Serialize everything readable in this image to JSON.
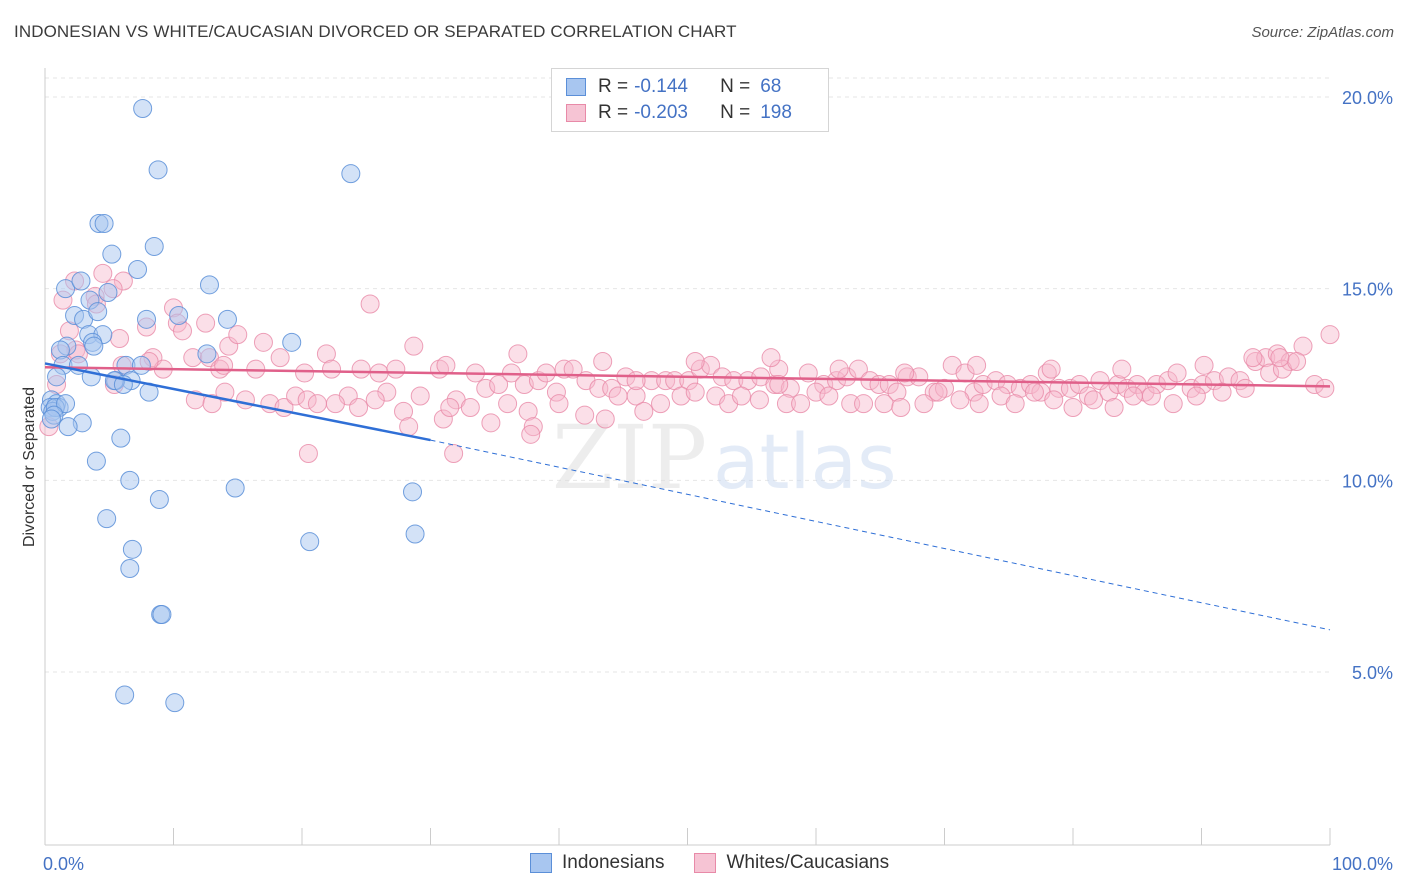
{
  "header": {
    "title": "INDONESIAN VS WHITE/CAUCASIAN DIVORCED OR SEPARATED CORRELATION CHART",
    "source": "Source: ZipAtlas.com"
  },
  "watermark": {
    "zip": "ZIP",
    "atlas": "atlas"
  },
  "legend": {
    "r_label": "R =",
    "n_label": "N =",
    "rows": [
      {
        "r": "-0.144",
        "n": "68"
      },
      {
        "r": "-0.203",
        "n": "198"
      }
    ]
  },
  "bottom_legend": [
    "Indonesians",
    "Whites/Caucasians"
  ],
  "chart_data": {
    "type": "scatter",
    "title": "INDONESIAN VS WHITE/CAUCASIAN DIVORCED OR SEPARATED CORRELATION CHART",
    "ylabel": "Divorced or Separated",
    "xlabel": "",
    "xlim": [
      0,
      100
    ],
    "ylim": [
      0,
      21
    ],
    "x_tick_labels": [
      "0.0%",
      "100.0%"
    ],
    "y_ticks": [
      5,
      10,
      15,
      20
    ],
    "y_tick_labels": [
      "5.0%",
      "10.0%",
      "15.0%",
      "20.0%"
    ],
    "grid": true,
    "legend_position": "top-center",
    "colors": {
      "indonesians_fill": "#a8c6f0",
      "indonesians_stroke": "#5b8fd8",
      "indonesians_line": "#2f6fd6",
      "whites_fill": "#f6b8cc",
      "whites_stroke": "#e88aa8",
      "whites_line": "#e0608a",
      "tick_text": "#4472c4"
    },
    "series": [
      {
        "name": "Indonesians",
        "r": -0.144,
        "n": 68,
        "trend": {
          "x0": 0,
          "y0": 13.05,
          "x1": 30,
          "y1": 11.05,
          "dash_to_x": 100,
          "dash_to_y": 6.1
        },
        "points": [
          [
            7.6,
            19.7
          ],
          [
            8.8,
            18.1
          ],
          [
            23.8,
            18.0
          ],
          [
            4.2,
            16.7
          ],
          [
            4.6,
            16.7
          ],
          [
            8.5,
            16.1
          ],
          [
            5.2,
            15.9
          ],
          [
            7.2,
            15.5
          ],
          [
            1.6,
            15.0
          ],
          [
            2.8,
            15.2
          ],
          [
            12.8,
            15.1
          ],
          [
            3.5,
            14.7
          ],
          [
            4.9,
            14.9
          ],
          [
            2.3,
            14.3
          ],
          [
            3.0,
            14.2
          ],
          [
            4.1,
            14.4
          ],
          [
            7.9,
            14.2
          ],
          [
            10.4,
            14.3
          ],
          [
            14.2,
            14.2
          ],
          [
            3.4,
            13.8
          ],
          [
            4.5,
            13.8
          ],
          [
            1.7,
            13.5
          ],
          [
            3.7,
            13.6
          ],
          [
            1.2,
            13.4
          ],
          [
            3.8,
            13.5
          ],
          [
            12.6,
            13.3
          ],
          [
            19.2,
            13.6
          ],
          [
            1.4,
            13.0
          ],
          [
            2.6,
            13.0
          ],
          [
            6.3,
            13.0
          ],
          [
            7.5,
            13.0
          ],
          [
            0.9,
            12.7
          ],
          [
            3.6,
            12.7
          ],
          [
            6.7,
            12.6
          ],
          [
            5.5,
            12.6
          ],
          [
            5.4,
            12.6
          ],
          [
            6.1,
            12.5
          ],
          [
            8.1,
            12.3
          ],
          [
            0.5,
            12.1
          ],
          [
            0.9,
            12.0
          ],
          [
            1.1,
            11.9
          ],
          [
            0.4,
            11.9
          ],
          [
            0.6,
            11.8
          ],
          [
            0.8,
            11.9
          ],
          [
            1.6,
            12.0
          ],
          [
            0.7,
            11.7
          ],
          [
            0.5,
            11.6
          ],
          [
            2.9,
            11.5
          ],
          [
            1.8,
            11.4
          ],
          [
            5.9,
            11.1
          ],
          [
            4.0,
            10.5
          ],
          [
            6.6,
            10.0
          ],
          [
            14.8,
            9.8
          ],
          [
            8.9,
            9.5
          ],
          [
            28.6,
            9.7
          ],
          [
            4.8,
            9.0
          ],
          [
            6.8,
            8.2
          ],
          [
            20.6,
            8.4
          ],
          [
            28.8,
            8.6
          ],
          [
            6.6,
            7.7
          ],
          [
            9.0,
            6.5
          ],
          [
            9.1,
            6.5
          ],
          [
            6.2,
            4.4
          ],
          [
            10.1,
            4.2
          ]
        ]
      },
      {
        "name": "Whites/Caucasians",
        "r": -0.203,
        "n": 198,
        "trend": {
          "x0": 0,
          "y0": 12.95,
          "x1": 100,
          "y1": 12.45
        },
        "points": [
          [
            2.3,
            15.2
          ],
          [
            4.5,
            15.4
          ],
          [
            1.4,
            14.7
          ],
          [
            3.9,
            14.8
          ],
          [
            4.0,
            14.6
          ],
          [
            6.1,
            15.2
          ],
          [
            5.3,
            15.0
          ],
          [
            25.3,
            14.6
          ],
          [
            10.0,
            14.5
          ],
          [
            10.3,
            14.1
          ],
          [
            12.5,
            14.1
          ],
          [
            10.7,
            13.9
          ],
          [
            7.9,
            14.0
          ],
          [
            1.9,
            13.9
          ],
          [
            2.4,
            13.4
          ],
          [
            1.2,
            13.3
          ],
          [
            2.6,
            13.3
          ],
          [
            5.8,
            13.7
          ],
          [
            8.4,
            13.2
          ],
          [
            11.5,
            13.2
          ],
          [
            12.8,
            13.2
          ],
          [
            14.3,
            13.5
          ],
          [
            15.0,
            13.8
          ],
          [
            17.0,
            13.6
          ],
          [
            18.3,
            13.2
          ],
          [
            21.9,
            13.3
          ],
          [
            28.7,
            13.5
          ],
          [
            9.2,
            12.9
          ],
          [
            13.6,
            12.9
          ],
          [
            16.4,
            12.9
          ],
          [
            20.2,
            12.8
          ],
          [
            22.3,
            12.9
          ],
          [
            26.0,
            12.8
          ],
          [
            26.6,
            12.3
          ],
          [
            27.3,
            12.9
          ],
          [
            30.7,
            12.9
          ],
          [
            31.2,
            13.0
          ],
          [
            33.5,
            12.8
          ],
          [
            34.3,
            12.4
          ],
          [
            35.3,
            12.5
          ],
          [
            36.3,
            12.8
          ],
          [
            37.3,
            12.5
          ],
          [
            38.4,
            12.6
          ],
          [
            39.0,
            12.8
          ],
          [
            39.8,
            12.3
          ],
          [
            40.4,
            12.9
          ],
          [
            41.1,
            12.9
          ],
          [
            42.1,
            12.6
          ],
          [
            43.1,
            12.4
          ],
          [
            44.1,
            12.4
          ],
          [
            45.2,
            12.7
          ],
          [
            46.0,
            12.2
          ],
          [
            47.2,
            12.6
          ],
          [
            48.3,
            12.6
          ],
          [
            49.0,
            12.6
          ],
          [
            50.1,
            12.6
          ],
          [
            51.0,
            12.9
          ],
          [
            51.8,
            13.0
          ],
          [
            52.7,
            12.7
          ],
          [
            53.6,
            12.6
          ],
          [
            54.7,
            12.6
          ],
          [
            55.7,
            12.7
          ],
          [
            56.8,
            12.5
          ],
          [
            57.1,
            12.9
          ],
          [
            58.0,
            12.4
          ],
          [
            59.4,
            12.8
          ],
          [
            60.6,
            12.5
          ],
          [
            61.6,
            12.6
          ],
          [
            62.4,
            12.7
          ],
          [
            63.3,
            12.9
          ],
          [
            64.2,
            12.6
          ],
          [
            64.9,
            12.5
          ],
          [
            65.7,
            12.5
          ],
          [
            66.3,
            12.3
          ],
          [
            67.1,
            12.7
          ],
          [
            68.0,
            12.7
          ],
          [
            69.2,
            12.3
          ],
          [
            70.0,
            12.4
          ],
          [
            70.6,
            13.0
          ],
          [
            71.6,
            12.8
          ],
          [
            72.3,
            12.3
          ],
          [
            73.0,
            12.5
          ],
          [
            74.0,
            12.6
          ],
          [
            74.9,
            12.5
          ],
          [
            75.9,
            12.4
          ],
          [
            76.7,
            12.5
          ],
          [
            77.5,
            12.3
          ],
          [
            78.0,
            12.8
          ],
          [
            78.9,
            12.4
          ],
          [
            79.8,
            12.4
          ],
          [
            80.5,
            12.5
          ],
          [
            81.2,
            12.2
          ],
          [
            82.1,
            12.6
          ],
          [
            82.8,
            12.3
          ],
          [
            83.5,
            12.5
          ],
          [
            84.2,
            12.4
          ],
          [
            85.0,
            12.5
          ],
          [
            85.6,
            12.3
          ],
          [
            86.5,
            12.5
          ],
          [
            87.4,
            12.6
          ],
          [
            88.1,
            12.8
          ],
          [
            89.2,
            12.4
          ],
          [
            90.1,
            12.5
          ],
          [
            91.0,
            12.6
          ],
          [
            92.1,
            12.7
          ],
          [
            93.0,
            12.6
          ],
          [
            94.2,
            13.1
          ],
          [
            95.0,
            13.2
          ],
          [
            95.9,
            13.3
          ],
          [
            96.9,
            13.1
          ],
          [
            97.9,
            13.5
          ],
          [
            98.8,
            12.5
          ],
          [
            99.6,
            12.4
          ],
          [
            100.0,
            13.8
          ],
          [
            5.4,
            12.5
          ],
          [
            8.1,
            13.1
          ],
          [
            11.7,
            12.1
          ],
          [
            13.0,
            12.0
          ],
          [
            14.0,
            12.3
          ],
          [
            15.6,
            12.1
          ],
          [
            17.5,
            12.0
          ],
          [
            18.6,
            11.9
          ],
          [
            19.5,
            12.2
          ],
          [
            20.4,
            12.1
          ],
          [
            21.2,
            12.0
          ],
          [
            23.6,
            12.2
          ],
          [
            24.4,
            11.9
          ],
          [
            25.7,
            12.1
          ],
          [
            27.9,
            11.8
          ],
          [
            28.3,
            11.4
          ],
          [
            29.2,
            12.2
          ],
          [
            31.0,
            11.6
          ],
          [
            32.0,
            12.1
          ],
          [
            33.1,
            11.9
          ],
          [
            34.7,
            11.5
          ],
          [
            36.0,
            12.0
          ],
          [
            37.6,
            11.8
          ],
          [
            38.0,
            11.4
          ],
          [
            40.0,
            12.0
          ],
          [
            42.0,
            11.7
          ],
          [
            43.6,
            11.6
          ],
          [
            44.6,
            12.2
          ],
          [
            46.6,
            11.8
          ],
          [
            47.9,
            12.0
          ],
          [
            49.5,
            12.2
          ],
          [
            50.6,
            12.3
          ],
          [
            52.2,
            12.2
          ],
          [
            53.2,
            12.0
          ],
          [
            54.2,
            12.2
          ],
          [
            55.6,
            12.1
          ],
          [
            57.7,
            12.0
          ],
          [
            58.8,
            12.0
          ],
          [
            60.0,
            12.3
          ],
          [
            61.0,
            12.2
          ],
          [
            62.7,
            12.0
          ],
          [
            63.7,
            12.0
          ],
          [
            65.3,
            12.0
          ],
          [
            66.6,
            11.9
          ],
          [
            68.4,
            12.0
          ],
          [
            69.5,
            12.3
          ],
          [
            71.2,
            12.1
          ],
          [
            72.7,
            12.0
          ],
          [
            74.4,
            12.2
          ],
          [
            75.5,
            12.0
          ],
          [
            77.0,
            12.3
          ],
          [
            78.5,
            12.1
          ],
          [
            80.0,
            11.9
          ],
          [
            81.6,
            12.1
          ],
          [
            83.2,
            11.9
          ],
          [
            84.7,
            12.2
          ],
          [
            86.1,
            12.2
          ],
          [
            87.8,
            12.0
          ],
          [
            89.6,
            12.2
          ],
          [
            91.6,
            12.3
          ],
          [
            93.4,
            12.4
          ],
          [
            95.3,
            12.8
          ],
          [
            96.3,
            12.9
          ],
          [
            97.4,
            13.1
          ],
          [
            0.3,
            11.4
          ],
          [
            0.9,
            12.5
          ],
          [
            20.5,
            10.7
          ],
          [
            31.8,
            10.7
          ],
          [
            37.8,
            11.2
          ],
          [
            22.6,
            12.0
          ],
          [
            6.0,
            13.0
          ],
          [
            13.9,
            13.0
          ],
          [
            24.6,
            12.9
          ],
          [
            36.8,
            13.3
          ],
          [
            43.4,
            13.1
          ],
          [
            50.6,
            13.1
          ],
          [
            56.5,
            13.2
          ],
          [
            61.8,
            12.9
          ],
          [
            66.9,
            12.8
          ],
          [
            72.5,
            13.0
          ],
          [
            78.3,
            12.9
          ],
          [
            83.8,
            12.9
          ],
          [
            90.2,
            13.0
          ],
          [
            94.0,
            13.2
          ],
          [
            96.1,
            13.2
          ],
          [
            57.1,
            12.5
          ],
          [
            46.0,
            12.6
          ],
          [
            31.5,
            11.9
          ]
        ]
      }
    ]
  }
}
